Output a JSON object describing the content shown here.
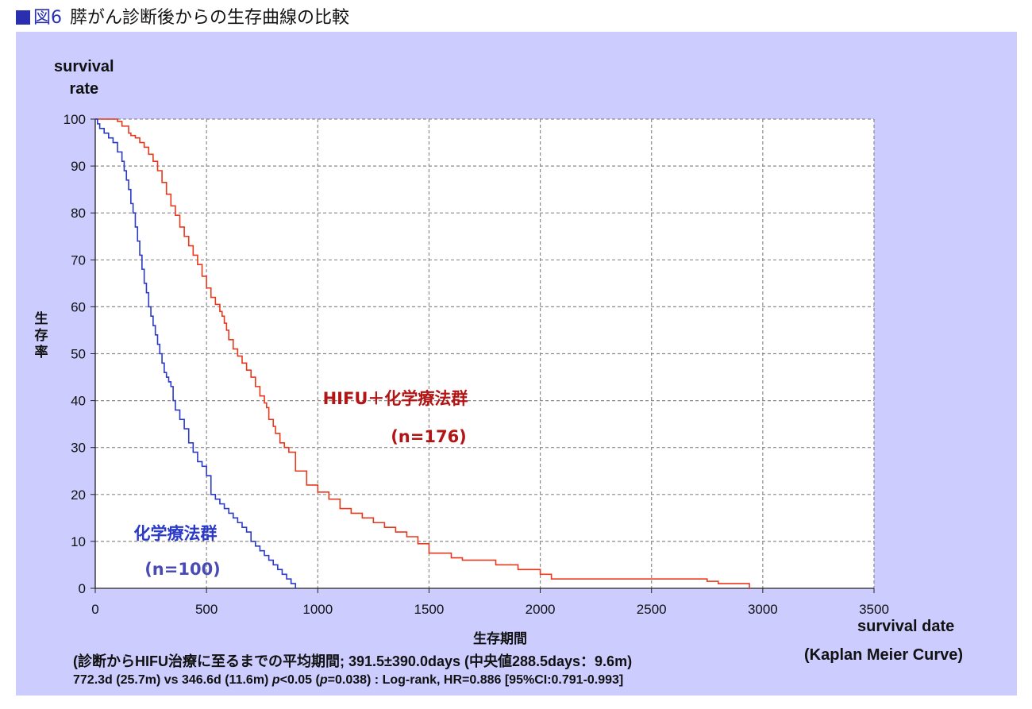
{
  "header": {
    "figure_no": "図6",
    "title": "膵がん診断後からの生存曲線の比較"
  },
  "chart_data": {
    "type": "line",
    "title": "膵がん診断後からの生存曲線の比較",
    "xlabel": "生存期間",
    "ylabel": "生存率",
    "xlabel_en": "survival date",
    "ylabel_en": [
      "survival",
      "rate"
    ],
    "subtitle": "(Kaplan Meier Curve)",
    "xlim": [
      0,
      3500
    ],
    "ylim": [
      0,
      100
    ],
    "x_ticks": [
      "0",
      "500",
      "1000",
      "1500",
      "2000",
      "2500",
      "3000",
      "3500"
    ],
    "y_ticks": [
      "0",
      "10",
      "20",
      "30",
      "40",
      "50",
      "60",
      "70",
      "80",
      "90",
      "100"
    ],
    "grid": true,
    "series": [
      {
        "name": "HIFU＋化学療法群",
        "label_n": "(n=176)",
        "color": "#e8381c",
        "x": [
          0,
          100,
          120,
          150,
          160,
          180,
          200,
          220,
          240,
          260,
          280,
          300,
          320,
          340,
          360,
          380,
          400,
          420,
          440,
          460,
          480,
          500,
          520,
          540,
          560,
          570,
          580,
          590,
          600,
          620,
          640,
          660,
          680,
          700,
          720,
          740,
          760,
          770,
          780,
          800,
          810,
          830,
          850,
          870,
          900,
          950,
          1000,
          1050,
          1100,
          1150,
          1200,
          1250,
          1300,
          1350,
          1400,
          1450,
          1500,
          1600,
          1650,
          1700,
          1800,
          1900,
          2000,
          2050,
          2100,
          2500,
          2750,
          2800,
          2900,
          2940
        ],
        "values": [
          100,
          99.5,
          98.5,
          97,
          96.5,
          96,
          95,
          94,
          92.5,
          91,
          89,
          86.5,
          84,
          81.5,
          79.5,
          77,
          75,
          73,
          71,
          69,
          66.5,
          64,
          62,
          60.5,
          59,
          58,
          56.5,
          55,
          53,
          51,
          49.5,
          48,
          46.5,
          45,
          43,
          41,
          39.5,
          38.5,
          36,
          34.5,
          33,
          31,
          30,
          29,
          25,
          22,
          20.5,
          19,
          17,
          16,
          15,
          14,
          13,
          12,
          11,
          9.5,
          7.5,
          6.5,
          6,
          6,
          5,
          4,
          3,
          2,
          2,
          2,
          1.5,
          1,
          1,
          0
        ]
      },
      {
        "name": "化学療法群",
        "label_n": "(n=100)",
        "color": "#2a39c8",
        "x": [
          0,
          10,
          20,
          40,
          60,
          80,
          100,
          120,
          130,
          140,
          150,
          160,
          170,
          180,
          190,
          200,
          210,
          220,
          230,
          240,
          250,
          260,
          270,
          280,
          290,
          300,
          310,
          320,
          330,
          340,
          350,
          360,
          380,
          400,
          420,
          440,
          460,
          480,
          500,
          520,
          540,
          560,
          580,
          600,
          620,
          640,
          660,
          680,
          700,
          720,
          740,
          760,
          780,
          800,
          820,
          840,
          860,
          880,
          900
        ],
        "values": [
          100,
          99,
          98,
          97,
          96,
          95,
          93,
          91,
          89,
          87,
          85,
          82,
          80,
          77,
          74,
          71,
          68,
          65,
          63,
          60,
          58,
          56,
          54,
          52,
          50,
          48,
          46,
          45,
          44,
          43,
          40,
          38,
          36,
          34,
          31,
          29,
          27,
          26,
          24,
          20,
          19,
          18,
          17,
          16,
          15,
          14,
          13,
          12,
          10,
          9,
          8,
          7,
          6,
          5,
          4,
          3,
          2,
          1,
          0
        ]
      }
    ]
  },
  "notes": {
    "line1": "(診断からHIFU治療に至るまでの平均期間; 391.5±390.0days (中央値288.5days：9.6m)",
    "line2_a": "772.3d (25.7m) vs 346.6d (11.6m) ",
    "line2_p": "p",
    "line2_b": "<0.05 (",
    "line2_p2": "p",
    "line2_c": "=0.038) : Log-rank, HR=0.886 [95%CI:0.791-0.993]"
  }
}
